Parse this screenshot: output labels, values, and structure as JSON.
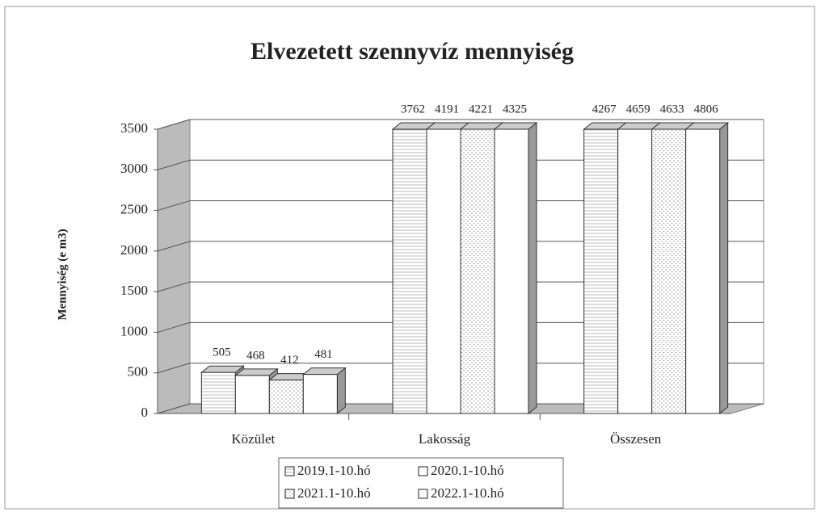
{
  "chart_data": {
    "type": "bar3d",
    "title": "Elvezetett szennyvíz mennyiség",
    "y_label": "Mennyiség (e m3)",
    "categories": [
      "Közület",
      "Lakosság",
      "Összesen"
    ],
    "series": [
      {
        "name": "2019.1-10.hó",
        "color": "#ffffff",
        "pattern": "lines",
        "values": [
          505,
          3762,
          4267
        ]
      },
      {
        "name": "2020.1-10.hó",
        "color": "#ffffff",
        "pattern": "none",
        "values": [
          468,
          4191,
          4659
        ]
      },
      {
        "name": "2021.1-10.hó",
        "color": "#ffffff",
        "pattern": "dots",
        "values": [
          412,
          4221,
          4633
        ]
      },
      {
        "name": "2022.1-10.hó",
        "color": "#ffffff",
        "pattern": "none",
        "values": [
          481,
          4325,
          4806
        ]
      }
    ],
    "ylim": [
      0,
      3500
    ],
    "yticks": [
      0,
      500,
      1000,
      1500,
      2000,
      2500,
      3000,
      3500
    ],
    "grid": true
  }
}
